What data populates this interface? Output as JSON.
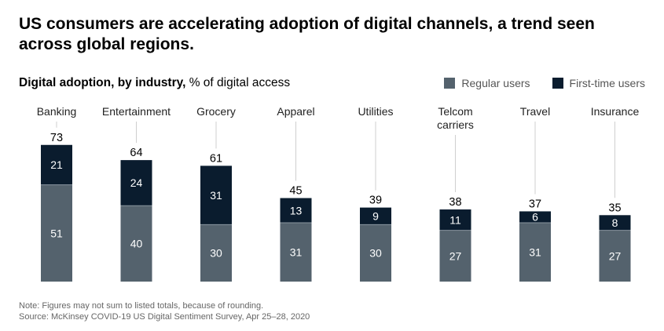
{
  "title": "US consumers are accelerating adoption of digital channels, a trend seen across global regions.",
  "subtitle": {
    "bold": "Digital adoption, by industry,",
    "rest": " % of digital access"
  },
  "legend": [
    {
      "label": "Regular users",
      "color": "#54626d"
    },
    {
      "label": "First-time users",
      "color": "#0a1c2e"
    }
  ],
  "chart_data": {
    "type": "bar",
    "stacked": true,
    "categories": [
      "Banking",
      "Entertainment",
      "Grocery",
      "Apparel",
      "Utilities",
      "Telcom carriers",
      "Travel",
      "Insurance"
    ],
    "category_lines": [
      [
        "Banking"
      ],
      [
        "Entertainment"
      ],
      [
        "Grocery"
      ],
      [
        "Apparel"
      ],
      [
        "Utilities"
      ],
      [
        "Telcom",
        "carriers"
      ],
      [
        "Travel"
      ],
      [
        "Insurance"
      ]
    ],
    "series": [
      {
        "name": "Regular users",
        "values": [
          51,
          40,
          30,
          31,
          30,
          27,
          31,
          27
        ],
        "color": "#54626d"
      },
      {
        "name": "First-time users",
        "values": [
          21,
          24,
          31,
          13,
          9,
          11,
          6,
          8
        ],
        "color": "#0a1c2e"
      }
    ],
    "totals": [
      73,
      64,
      61,
      45,
      39,
      38,
      37,
      35
    ],
    "ylim": [
      0,
      100
    ],
    "grid": false,
    "legend_position": "top-right"
  },
  "notes": [
    "Note: Figures may not sum to listed totals, because of rounding.",
    "Source: McKinsey COVID-19 US Digital Sentiment Survey, Apr 25–28, 2020"
  ]
}
